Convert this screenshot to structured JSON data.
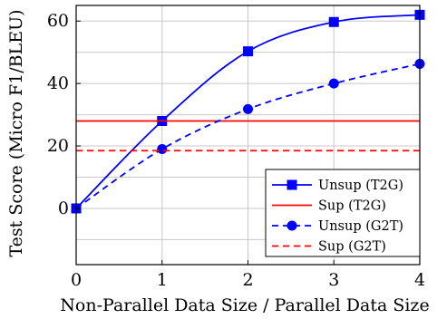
{
  "chart_data": {
    "type": "line",
    "xlabel": "Non-Parallel Data Size / Parallel Data Size",
    "ylabel": "Test Score (Micro F1/BLEU)",
    "xlim": [
      0,
      4
    ],
    "ylim": [
      -18,
      65
    ],
    "xticks": [
      0,
      1,
      2,
      3,
      4
    ],
    "yticks": [
      0,
      20,
      40,
      60
    ],
    "grid": true,
    "legend": "bottom-right",
    "series": [
      {
        "name": "Unsup (T2G)",
        "color": "#0000ff",
        "dash": "solid",
        "marker": "square",
        "smooth": true,
        "x": [
          0,
          1,
          2,
          3,
          4
        ],
        "y": [
          0,
          28,
          50.3,
          59.7,
          62
        ]
      },
      {
        "name": "Sup (T2G)",
        "color": "#ff0000",
        "dash": "solid",
        "marker": "none",
        "smooth": false,
        "x": [
          0,
          4
        ],
        "y": [
          28,
          28
        ]
      },
      {
        "name": "Unsup (G2T)",
        "color": "#0000ff",
        "dash": "dashed",
        "marker": "circle",
        "smooth": true,
        "x": [
          0,
          1,
          2,
          3,
          4
        ],
        "y": [
          0,
          19,
          31.8,
          40,
          46.3
        ]
      },
      {
        "name": "Sup (G2T)",
        "color": "#ff0000",
        "dash": "dashed",
        "marker": "none",
        "smooth": false,
        "x": [
          0,
          4
        ],
        "y": [
          18.5,
          18.5
        ]
      }
    ]
  }
}
